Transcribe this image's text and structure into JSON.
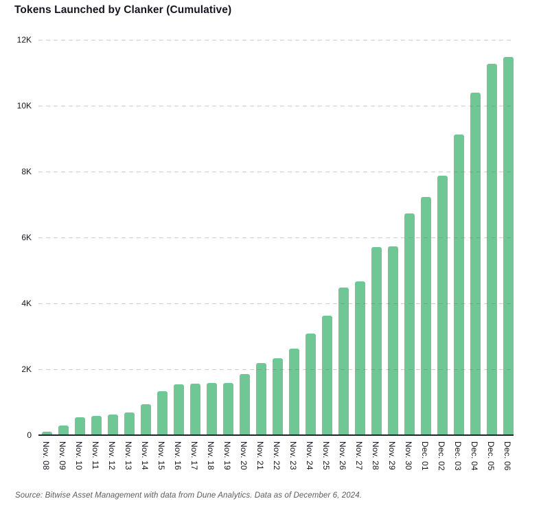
{
  "page": {
    "source": "Source: Bitwise Asset Management with data from Dune Analytics. Data as of December 6, 2024."
  },
  "colors": {
    "bar": "#6ec795",
    "title_text": "#15151f",
    "axis_text": "#15151f",
    "gridline": "#c9ccce",
    "zero_axis_line": "#23232b",
    "source_text": "#5a5a60",
    "background": "#ffffff"
  },
  "chart_data": {
    "type": "bar",
    "title": "Tokens Launched by Clanker (Cumulative)",
    "categories": [
      "Nov. 08",
      "Nov. 09",
      "Nov. 10",
      "Nov. 11",
      "Nov. 12",
      "Nov. 13",
      "Nov. 14",
      "Nov. 15",
      "Nov. 16",
      "Nov. 17",
      "Nov. 18",
      "Nov. 19",
      "Nov. 20",
      "Nov. 21",
      "Nov. 22",
      "Nov. 23",
      "Nov. 24",
      "Nov. 25",
      "Nov. 26",
      "Nov. 27",
      "Nov. 28",
      "Nov. 29",
      "Nov. 30",
      "Dec. 01",
      "Dec. 02",
      "Dec. 03",
      "Dec. 04",
      "Dec. 05",
      "Dec. 06"
    ],
    "values": [
      100,
      300,
      540,
      590,
      630,
      690,
      940,
      1340,
      1550,
      1570,
      1580,
      1590,
      1860,
      2190,
      2330,
      2620,
      3090,
      3630,
      4470,
      4660,
      5700,
      5730,
      6730,
      7230,
      7870,
      9120,
      10400,
      11270,
      11480
    ],
    "xlabel": "",
    "ylabel": "",
    "ylim": [
      0,
      12000
    ],
    "yticks": [
      {
        "value": 0,
        "label": "0"
      },
      {
        "value": 2000,
        "label": "2K"
      },
      {
        "value": 4000,
        "label": "4K"
      },
      {
        "value": 6000,
        "label": "6K"
      },
      {
        "value": 8000,
        "label": "8K"
      },
      {
        "value": 10000,
        "label": "10K"
      },
      {
        "value": 12000,
        "label": "12K"
      }
    ],
    "grid": "horizontal-dashed",
    "legend": "none",
    "bar_color": "#6ec795"
  }
}
